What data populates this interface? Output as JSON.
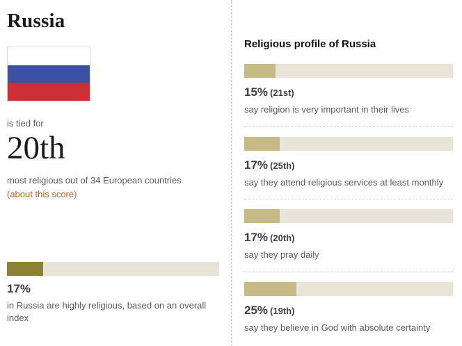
{
  "left": {
    "title": "Russia",
    "tied_text": "is tied for",
    "rank": "20th",
    "rank_caption": "most religious out of 34 European countries",
    "score_link": "(about this score)",
    "summary": {
      "pct": "17%",
      "value": 17,
      "caption": "in Russia are highly religious, based on an overall index"
    }
  },
  "flag": {
    "country": "Russia",
    "stripe_colors": [
      "#ffffff",
      "#3c51a3",
      "#cc2f35"
    ]
  },
  "profile": {
    "heading": "Religious profile of Russia",
    "stats": [
      {
        "pct": "15%",
        "rank": "(21st)",
        "value": 15,
        "caption": "say religion is very important in their lives"
      },
      {
        "pct": "17%",
        "rank": "(25th)",
        "value": 17,
        "caption": "say they attend religious services at least monthly"
      },
      {
        "pct": "17%",
        "rank": "(20th)",
        "value": 17,
        "caption": "say they pray daily"
      },
      {
        "pct": "25%",
        "rank": "(19th)",
        "value": 25,
        "caption": "say they believe in God with absolute certainty"
      }
    ]
  },
  "colors": {
    "bar_background": "#e9e4d8",
    "bar_fill_tan": "#c6bb87",
    "bar_fill_olive": "#8d8135",
    "link_orange": "#c05f27"
  },
  "chart_data": [
    {
      "type": "bar",
      "title": "Highly religious in Russia (overall index)",
      "categories": [
        "in Russia are highly religious, based on an overall index"
      ],
      "values": [
        17
      ],
      "xlim": [
        0,
        100
      ],
      "orientation": "horizontal",
      "annotations": [
        "17%"
      ]
    },
    {
      "type": "bar",
      "title": "Religious profile of Russia",
      "categories": [
        "say religion is very important in their lives",
        "say they attend religious services at least monthly",
        "say they pray daily",
        "say they believe in God with absolute certainty"
      ],
      "values": [
        15,
        17,
        17,
        25
      ],
      "annotations": [
        "15% (21st)",
        "17% (25th)",
        "17% (20th)",
        "25% (19th)"
      ],
      "xlim": [
        0,
        100
      ],
      "orientation": "horizontal",
      "grid": false,
      "legend": "none"
    }
  ]
}
